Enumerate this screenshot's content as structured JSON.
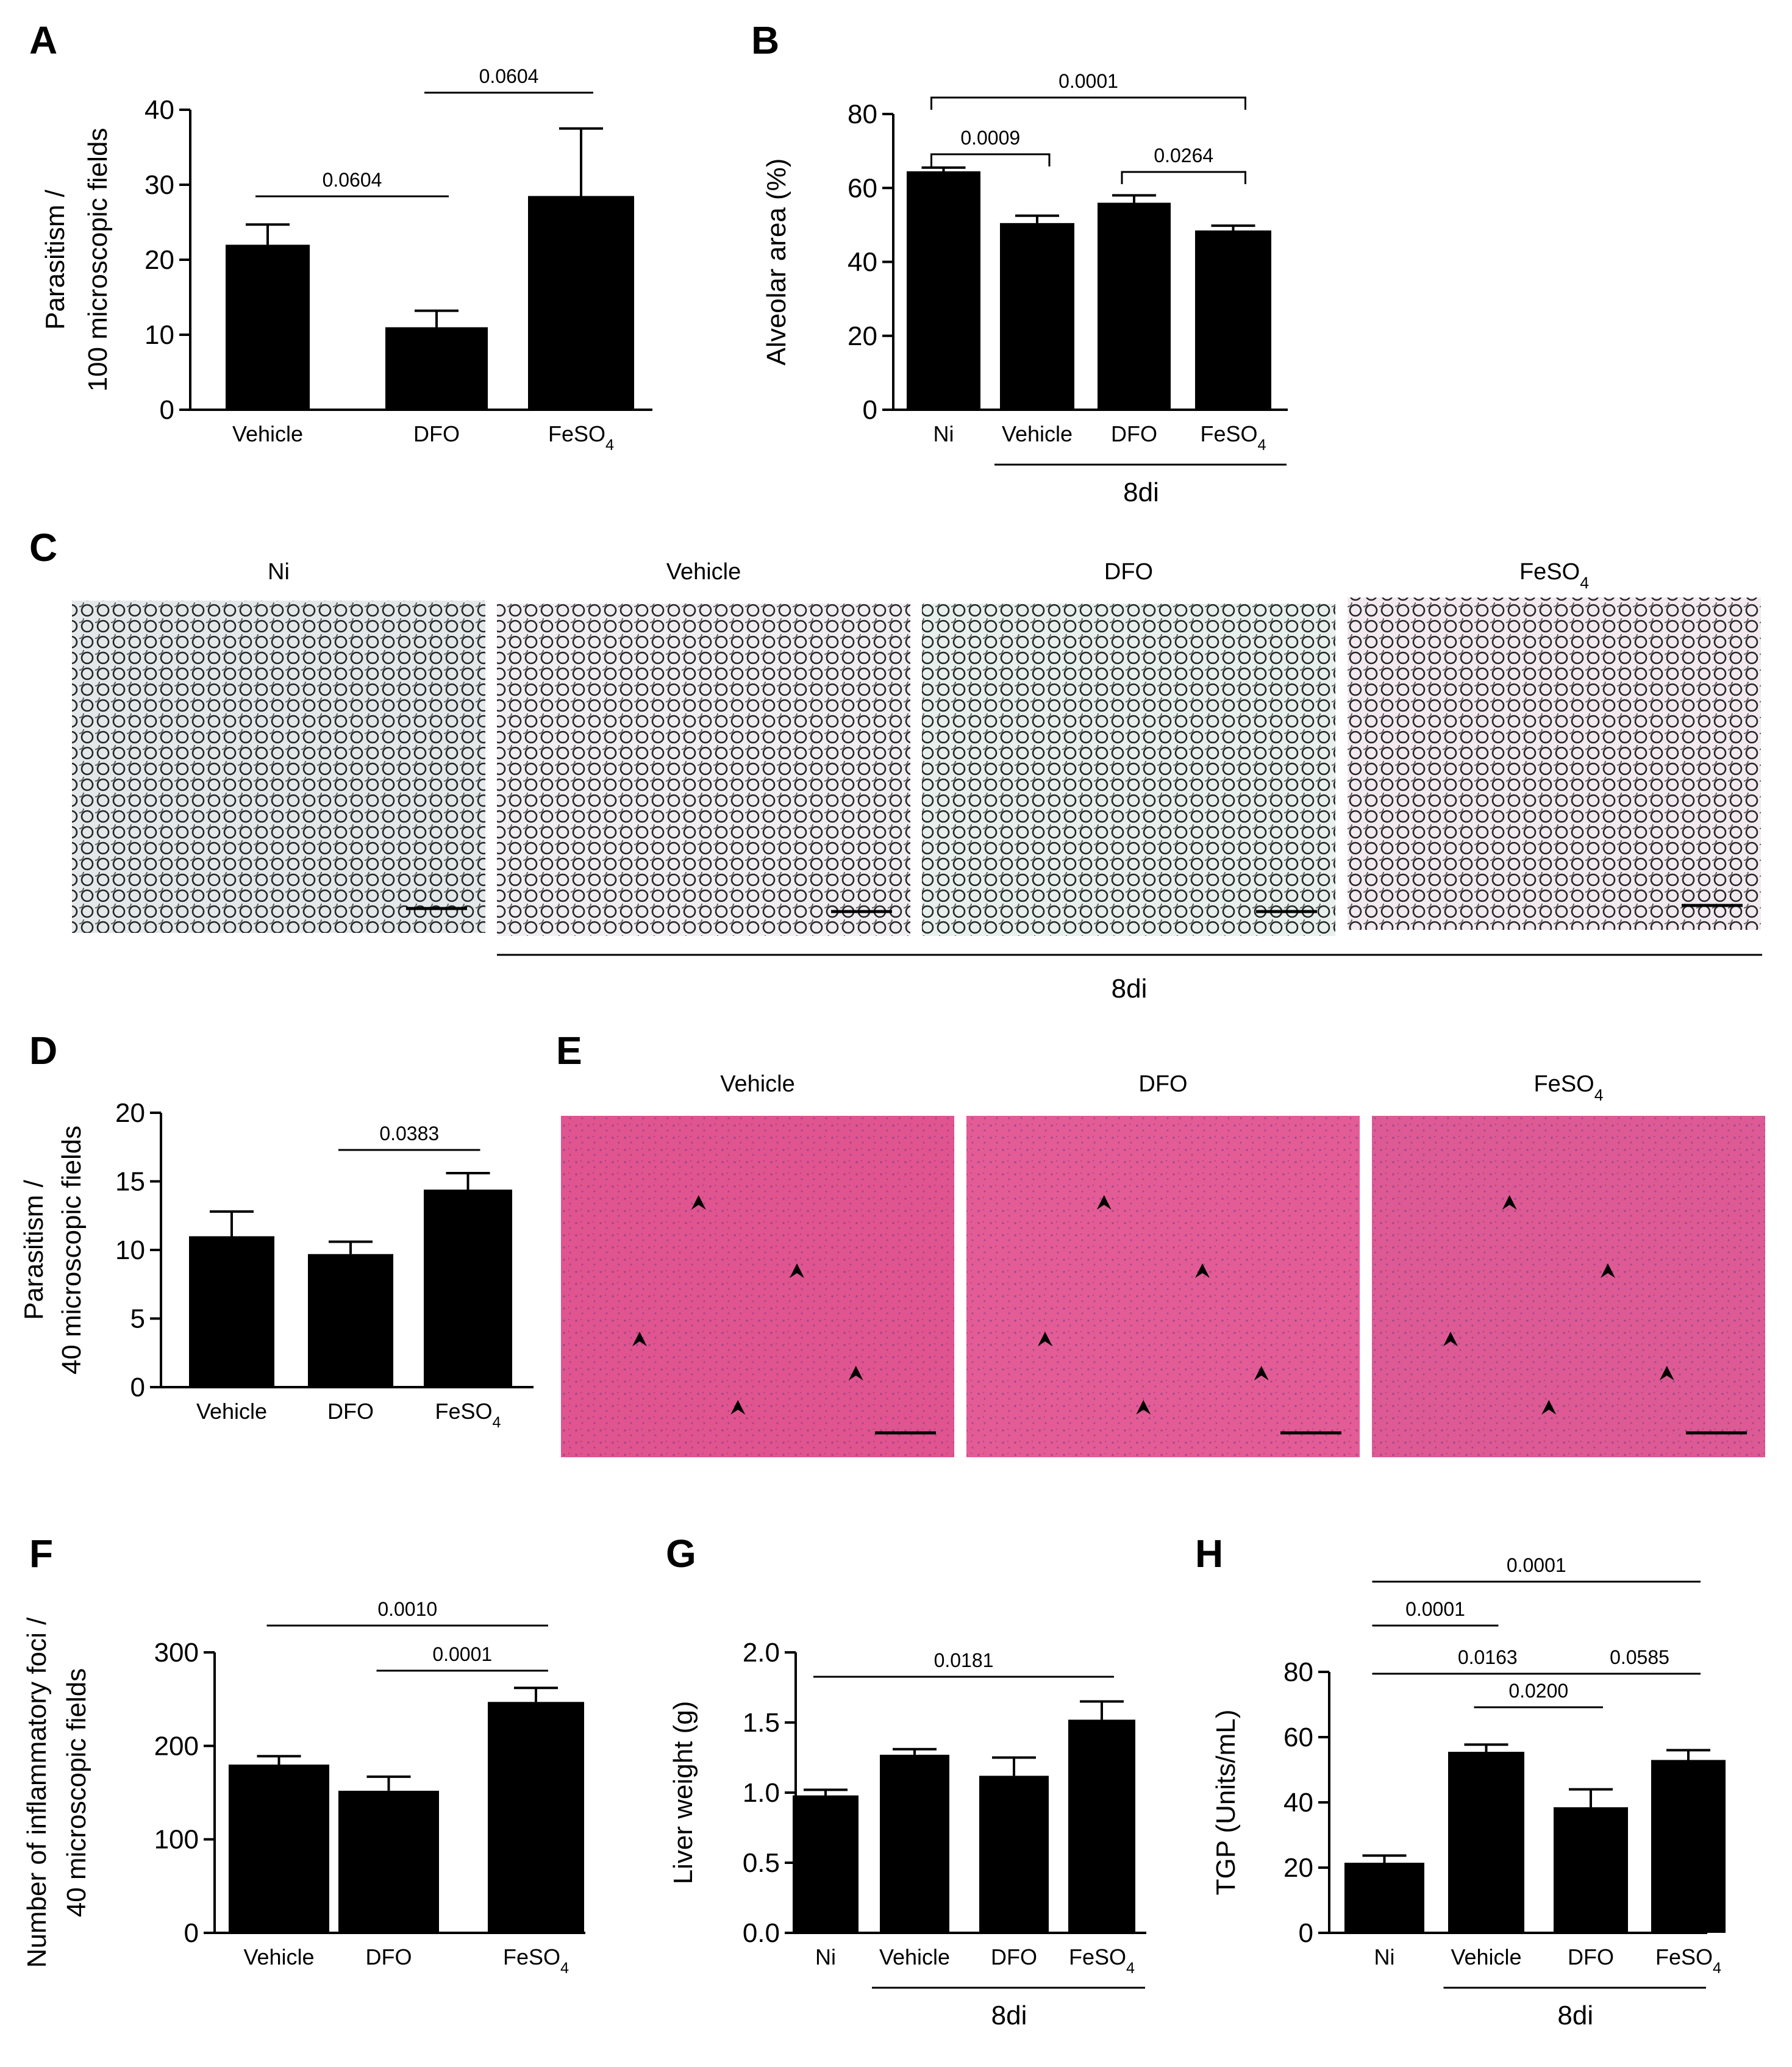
{
  "panels": {
    "C": {
      "letter": "C",
      "images": [
        {
          "title": "Ni",
          "color": "#8a74b0",
          "bg": "#e4e8ea"
        },
        {
          "title": "Vehicle",
          "color": "#8a3c96",
          "bg": "#f1eef2"
        },
        {
          "title": "DFO",
          "color": "#5b52a6",
          "bg": "#e7f0ed"
        },
        {
          "title": "FeSO",
          "sub": "4",
          "color": "#9a3c8c",
          "bg": "#f2eaf0"
        }
      ],
      "group_label": "8di"
    },
    "E": {
      "letter": "E",
      "images": [
        {
          "title": "Vehicle",
          "color": "#e0548f"
        },
        {
          "title": "DFO",
          "color": "#e35c96"
        },
        {
          "title": "FeSO",
          "sub": "4",
          "color": "#dd5a94"
        }
      ]
    }
  },
  "chart_data": [
    {
      "id": "A",
      "letter": "A",
      "type": "bar",
      "ylabel": [
        "Parasitism /",
        "100 microscopic fields"
      ],
      "ylim": [
        0,
        40
      ],
      "yticks": [
        "0",
        "10",
        "20",
        "30",
        "40"
      ],
      "categories": [
        {
          "t": "Vehicle"
        },
        {
          "t": "DFO"
        },
        {
          "t": "FeSO",
          "sub": "4"
        }
      ],
      "values": [
        22,
        11,
        28.5
      ],
      "errors": [
        2.7,
        2.2,
        9
      ],
      "comparisons": [
        {
          "from": 0,
          "to": 1,
          "label": "0.0604"
        },
        {
          "from": 1,
          "to": 2,
          "label": "0.0604"
        }
      ],
      "group_label": ""
    },
    {
      "id": "B",
      "letter": "B",
      "type": "bar",
      "ylabel": [
        "Alveolar area (%)"
      ],
      "ylim": [
        0,
        80
      ],
      "yticks": [
        "0",
        "20",
        "40",
        "60",
        "80"
      ],
      "categories": [
        {
          "t": "Ni"
        },
        {
          "t": "Vehicle"
        },
        {
          "t": "DFO"
        },
        {
          "t": "FeSO",
          "sub": "4"
        }
      ],
      "values": [
        64.5,
        50.5,
        56,
        48.5
      ],
      "errors": [
        1,
        2,
        2,
        1.3
      ],
      "comparisons": [
        {
          "from": 0,
          "to": 3,
          "label": "0.0001"
        },
        {
          "from": 0,
          "to": 1,
          "label": "0.0009"
        },
        {
          "from": 2,
          "to": 3,
          "label": "0.0264"
        }
      ],
      "group_label": "8di"
    },
    {
      "id": "D",
      "letter": "D",
      "type": "bar",
      "ylabel": [
        "Parasitism /",
        "40 microscopic fields"
      ],
      "ylim": [
        0,
        20
      ],
      "yticks": [
        "0",
        "5",
        "10",
        "15",
        "20"
      ],
      "categories": [
        {
          "t": "Vehicle"
        },
        {
          "t": "DFO"
        },
        {
          "t": "FeSO",
          "sub": "4"
        }
      ],
      "values": [
        11,
        9.7,
        14.4
      ],
      "errors": [
        1.8,
        0.9,
        1.2
      ],
      "comparisons": [
        {
          "from": 1,
          "to": 2,
          "label": "0.0383"
        }
      ],
      "group_label": ""
    },
    {
      "id": "F",
      "letter": "F",
      "type": "bar",
      "ylabel": [
        "Number of inflammatory foci /",
        "40 microscopic fields"
      ],
      "ylim": [
        0,
        300
      ],
      "yticks": [
        "0",
        "100",
        "200",
        "300"
      ],
      "categories": [
        {
          "t": "Vehicle"
        },
        {
          "t": "DFO"
        },
        {
          "t": "FeSO",
          "sub": "4"
        }
      ],
      "values": [
        180,
        152,
        247
      ],
      "errors": [
        9,
        15,
        15
      ],
      "comparisons": [
        {
          "from": 0,
          "to": 2,
          "label": "0.0010"
        },
        {
          "from": 1,
          "to": 2,
          "label": "0.0001"
        }
      ],
      "group_label": ""
    },
    {
      "id": "G",
      "letter": "G",
      "type": "bar",
      "ylabel": [
        "Liver weight (g)"
      ],
      "ylim": [
        0,
        2.0
      ],
      "yticks": [
        "0.0",
        "0.5",
        "1.0",
        "1.5",
        "2.0"
      ],
      "categories": [
        {
          "t": "Ni"
        },
        {
          "t": "Vehicle"
        },
        {
          "t": "DFO"
        },
        {
          "t": "FeSO",
          "sub": "4"
        }
      ],
      "values": [
        0.98,
        1.27,
        1.12,
        1.52
      ],
      "errors": [
        0.04,
        0.04,
        0.13,
        0.13
      ],
      "comparisons": [
        {
          "from": 0,
          "to": 3,
          "label": "0.0181"
        }
      ],
      "group_label": "8di"
    },
    {
      "id": "H",
      "letter": "H",
      "type": "bar",
      "ylabel": [
        "TGP (Units/mL)"
      ],
      "ylim": [
        0,
        80
      ],
      "yticks": [
        "0",
        "20",
        "40",
        "60",
        "80"
      ],
      "categories": [
        {
          "t": "Ni"
        },
        {
          "t": "Vehicle"
        },
        {
          "t": "DFO"
        },
        {
          "t": "FeSO",
          "sub": "4"
        }
      ],
      "values": [
        21.5,
        55.5,
        38.5,
        53
      ],
      "errors": [
        2.2,
        2.2,
        5.5,
        3
      ],
      "comparisons": [
        {
          "from": 0,
          "to": 3,
          "label": "0.0001"
        },
        {
          "from": 0,
          "to": 1,
          "label": "0.0001"
        },
        {
          "from": 0,
          "to": 2,
          "label": "0.0163"
        },
        {
          "from": 2,
          "to": 3,
          "label": "0.0585"
        },
        {
          "from": 1,
          "to": 2,
          "label": "0.0200"
        }
      ],
      "group_label": "8di"
    }
  ]
}
